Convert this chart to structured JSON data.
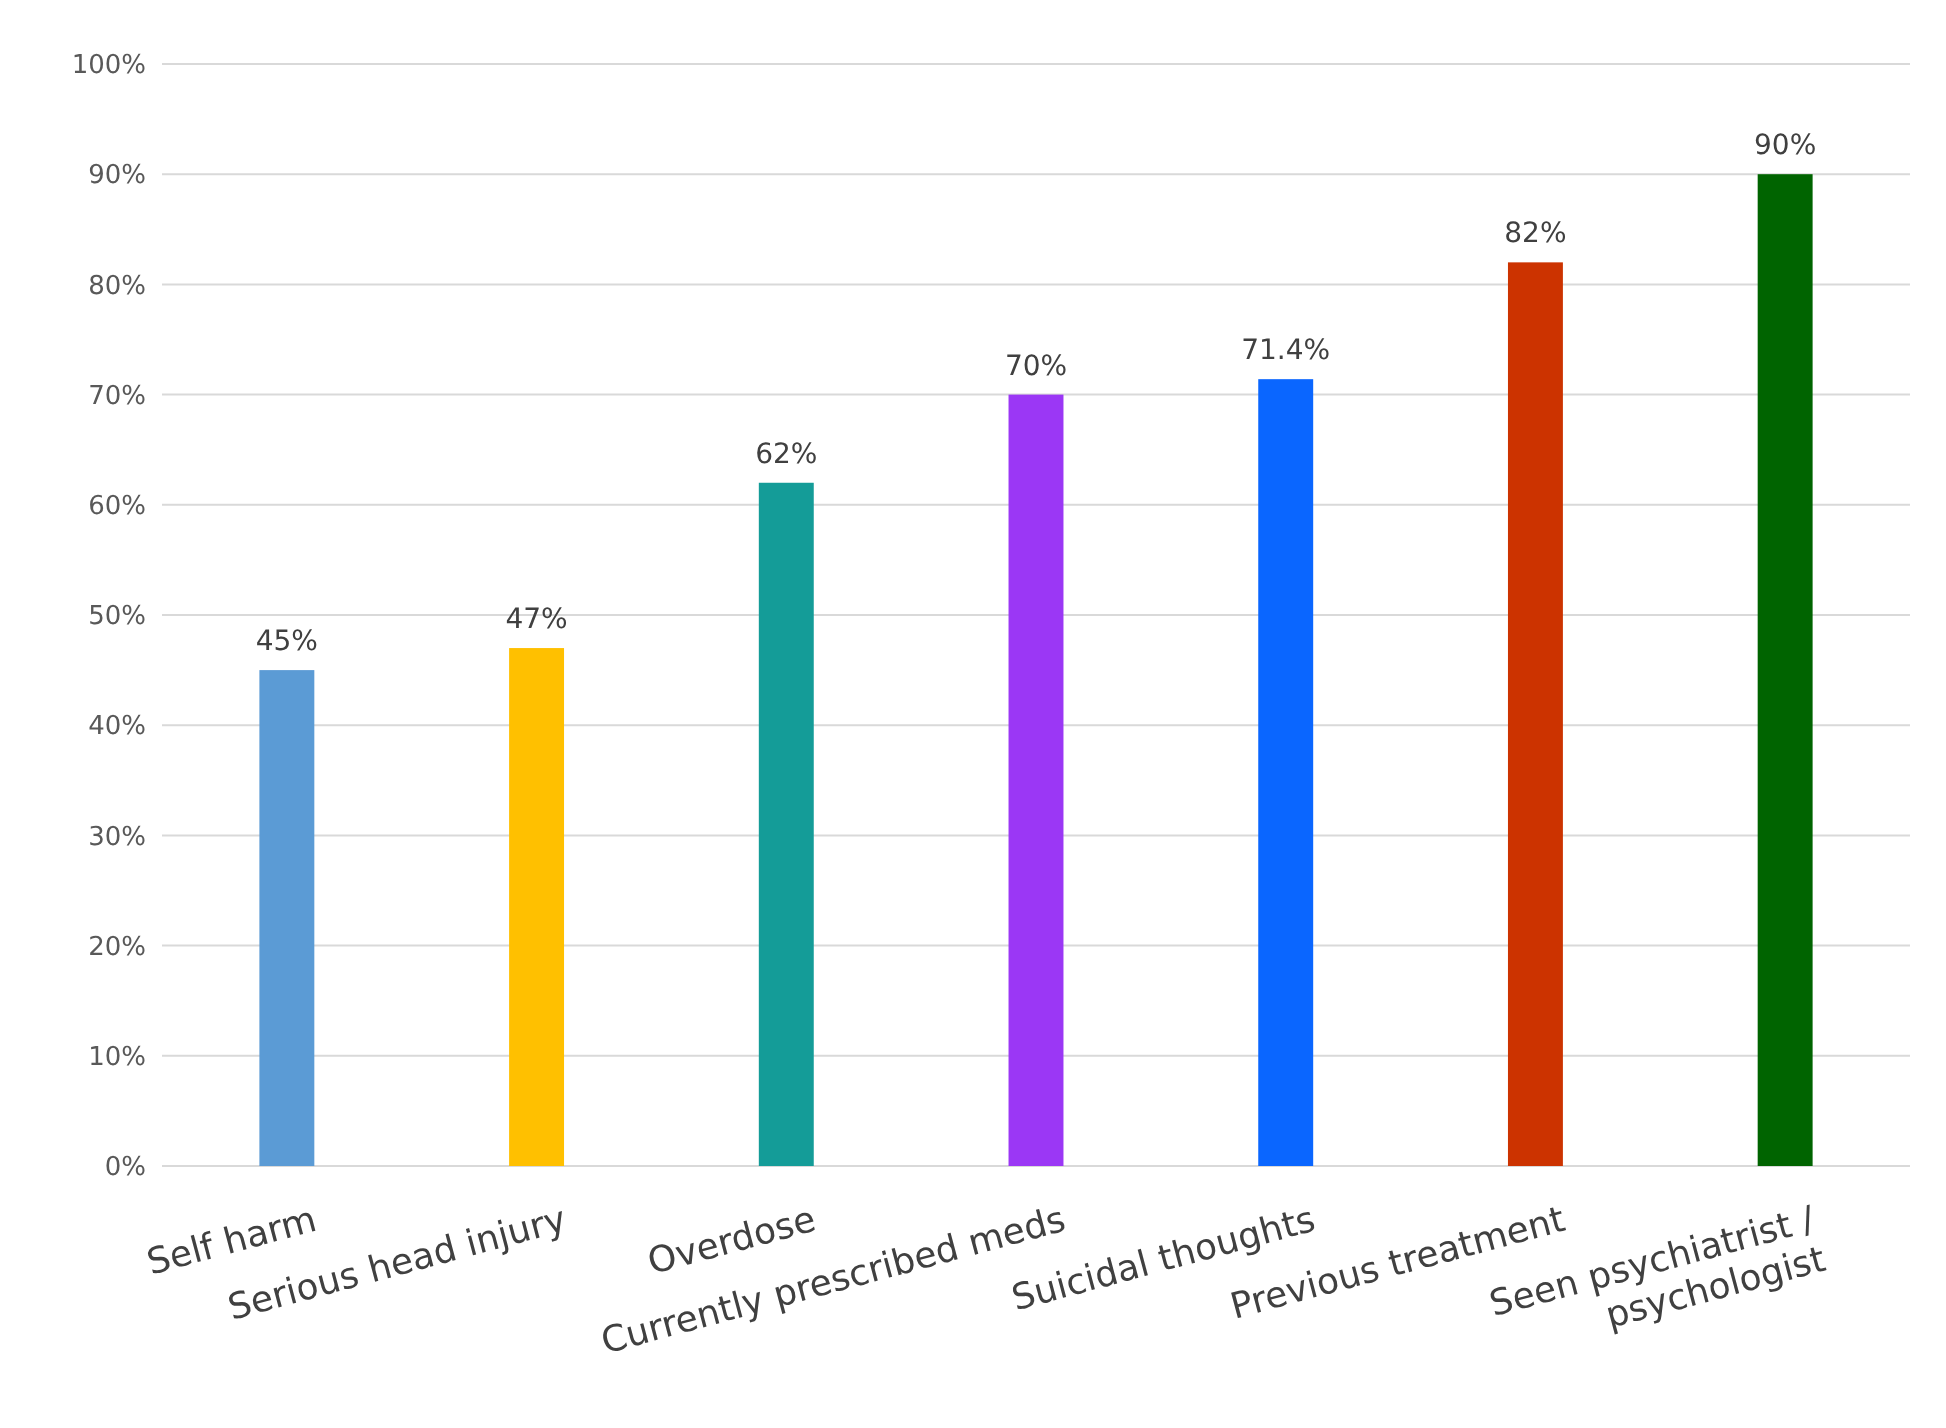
{
  "chart_data": {
    "type": "bar",
    "categories": [
      "Self harm",
      "Serious head injury",
      "Overdose",
      "Currently prescribed meds",
      "Suicidal thoughts",
      "Previous treatment",
      "Seen psychiatrist / psychologist"
    ],
    "values": [
      45,
      47,
      62,
      70,
      71.4,
      82,
      90
    ],
    "colors": [
      "#5b9bd5",
      "#ffc000",
      "#149c98",
      "#9b37f5",
      "#0a66ff",
      "#cc3300",
      "#006400"
    ],
    "value_labels": [
      "45%",
      "47%",
      "62%",
      "70%",
      "71.4%",
      "82%",
      "90%"
    ],
    "ylim": [
      0,
      100
    ],
    "yticks": [
      {
        "value": 0,
        "label": "0%"
      },
      {
        "value": 10,
        "label": "10%"
      },
      {
        "value": 20,
        "label": "20%"
      },
      {
        "value": 30,
        "label": "30%"
      },
      {
        "value": 40,
        "label": "40%"
      },
      {
        "value": 50,
        "label": "50%"
      },
      {
        "value": 60,
        "label": "60%"
      },
      {
        "value": 70,
        "label": "70%"
      },
      {
        "value": 80,
        "label": "80%"
      },
      {
        "value": 90,
        "label": "90%"
      },
      {
        "value": 100,
        "label": "100%"
      }
    ],
    "grid": "y"
  }
}
